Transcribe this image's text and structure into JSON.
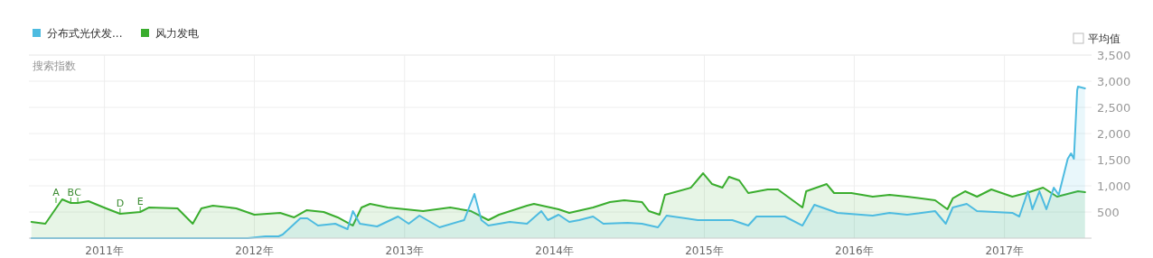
{
  "chart_data": {
    "type": "area",
    "ylabel": "搜索指数",
    "legend": "top left",
    "grid": true,
    "xlim": [
      "2010-07-01",
      "2017-08-01"
    ],
    "xticks": [
      {
        "value": "2011-01-01",
        "label": "2011年"
      },
      {
        "value": "2012-01-01",
        "label": "2012年"
      },
      {
        "value": "2013-01-01",
        "label": "2013年"
      },
      {
        "value": "2014-01-01",
        "label": "2014年"
      },
      {
        "value": "2015-01-01",
        "label": "2015年"
      },
      {
        "value": "2016-01-01",
        "label": "2016年"
      },
      {
        "value": "2017-01-01",
        "label": "2017年"
      }
    ],
    "ylim": [
      0,
      3500
    ],
    "yticks": [
      {
        "value": 500,
        "label": "500"
      },
      {
        "value": 1000,
        "label": "1,000"
      },
      {
        "value": 1500,
        "label": "1,500"
      },
      {
        "value": 2000,
        "label": "2,000"
      },
      {
        "value": 2500,
        "label": "2,500"
      },
      {
        "value": 3000,
        "label": "3,000"
      },
      {
        "value": 3500,
        "label": "3,500"
      }
    ],
    "annotations": [
      "平均值",
      {
        "text": "A",
        "x": "2010-09-05",
        "y": 672
      },
      {
        "text": "B",
        "x": "2010-10-11",
        "y": 672
      },
      {
        "text": "C",
        "x": "2010-10-28",
        "y": 672
      },
      {
        "text": "D",
        "x": "2011-02-08",
        "y": 466
      },
      {
        "text": "E",
        "x": "2011-03-29",
        "y": 500
      }
    ],
    "series": [
      {
        "name": "风力发电",
        "color": "#3aad2e",
        "x": [
          "2010-07-07",
          "2010-08-10",
          "2010-09-20",
          "2010-10-11",
          "2010-10-28",
          "2010-11-23",
          "2011-01-05",
          "2011-02-08",
          "2011-03-29",
          "2011-04-19",
          "2011-06-28",
          "2011-08-04",
          "2011-08-25",
          "2011-09-22",
          "2011-11-18",
          "2012-01-01",
          "2012-03-04",
          "2012-04-07",
          "2012-05-07",
          "2012-06-18",
          "2012-07-22",
          "2012-08-28",
          "2012-09-18",
          "2012-10-09",
          "2012-11-21",
          "2013-02-15",
          "2013-04-22",
          "2013-06-12",
          "2013-07-24",
          "2013-08-19",
          "2013-10-26",
          "2013-11-12",
          "2014-01-11",
          "2014-02-06",
          "2014-04-05",
          "2014-05-16",
          "2014-06-20",
          "2014-08-02",
          "2014-08-19",
          "2014-09-14",
          "2014-09-27",
          "2014-11-29",
          "2014-12-29",
          "2015-01-20",
          "2015-02-14",
          "2015-03-02",
          "2015-03-27",
          "2015-04-18",
          "2015-06-04",
          "2015-06-29",
          "2015-08-28",
          "2015-09-06",
          "2015-10-26",
          "2015-11-13",
          "2015-12-25",
          "2016-02-15",
          "2016-03-27",
          "2016-05-09",
          "2016-07-16",
          "2016-08-15",
          "2016-08-28",
          "2016-09-27",
          "2016-10-26",
          "2016-11-30",
          "2017-01-20",
          "2017-02-23",
          "2017-04-05",
          "2017-05-09",
          "2017-06-29",
          "2017-07-16"
        ],
        "values": [
          310,
          276,
          741,
          672,
          672,
          707,
          569,
          466,
          500,
          586,
          569,
          276,
          569,
          621,
          569,
          448,
          483,
          397,
          534,
          500,
          397,
          241,
          586,
          655,
          586,
          517,
          586,
          517,
          345,
          448,
          621,
          655,
          552,
          483,
          586,
          690,
          724,
          690,
          517,
          448,
          828,
          965,
          1241,
          1034,
          965,
          1172,
          1103,
          862,
          931,
          931,
          586,
          896,
          1034,
          862,
          862,
          793,
          828,
          793,
          724,
          552,
          759,
          896,
          793,
          931,
          793,
          862,
          965,
          793,
          896,
          879
        ]
      },
      {
        "name": "分布式光伏发...",
        "color": "#4dbbe0",
        "x": [
          "2010-07-07",
          "2011-12-16",
          "2012-01-28",
          "2012-02-29",
          "2012-03-10",
          "2012-04-22",
          "2012-05-09",
          "2012-06-04",
          "2012-07-16",
          "2012-08-15",
          "2012-08-28",
          "2012-09-14",
          "2012-10-26",
          "2012-12-16",
          "2013-01-11",
          "2013-02-06",
          "2013-03-27",
          "2013-05-26",
          "2013-06-20",
          "2013-07-07",
          "2013-07-24",
          "2013-09-14",
          "2013-10-26",
          "2013-11-30",
          "2013-12-16",
          "2014-01-11",
          "2014-02-06",
          "2014-03-02",
          "2014-04-05",
          "2014-04-30",
          "2014-06-28",
          "2014-08-02",
          "2014-09-10",
          "2014-10-01",
          "2014-12-16",
          "2015-03-10",
          "2015-04-18",
          "2015-05-08",
          "2015-07-16",
          "2015-08-28",
          "2015-09-26",
          "2015-11-21",
          "2016-02-15",
          "2016-03-27",
          "2016-05-09",
          "2016-07-16",
          "2016-08-11",
          "2016-08-28",
          "2016-10-01",
          "2016-10-26",
          "2017-01-20",
          "2017-02-06",
          "2017-02-27",
          "2017-03-10",
          "2017-03-27",
          "2017-04-13",
          "2017-05-01",
          "2017-05-13",
          "2017-06-04",
          "2017-06-12",
          "2017-06-19",
          "2017-06-27",
          "2017-06-29",
          "2017-07-16"
        ],
        "values": [
          0,
          0,
          34,
          34,
          69,
          379,
          379,
          241,
          276,
          172,
          517,
          276,
          224,
          414,
          276,
          431,
          207,
          345,
          845,
          345,
          241,
          310,
          276,
          517,
          345,
          448,
          310,
          345,
          414,
          276,
          293,
          276,
          207,
          431,
          345,
          345,
          241,
          414,
          414,
          241,
          638,
          483,
          431,
          483,
          448,
          517,
          276,
          586,
          655,
          517,
          483,
          414,
          896,
          552,
          896,
          552,
          965,
          828,
          1517,
          1621,
          1517,
          2827,
          2896,
          2862
        ]
      }
    ]
  }
}
